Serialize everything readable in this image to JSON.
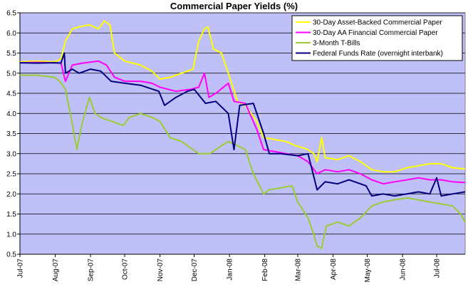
{
  "chart_data": {
    "type": "line",
    "title": "Commercial Paper Yields (%)",
    "xlabel": "",
    "ylabel": "",
    "ylim": [
      0.5,
      6.5
    ],
    "yticks": [
      0.5,
      1.0,
      1.5,
      2.0,
      2.5,
      3.0,
      3.5,
      4.0,
      4.5,
      5.0,
      5.5,
      6.0,
      6.5
    ],
    "xlim": [
      "2007-07-01",
      "2008-07-26"
    ],
    "xticks": [
      {
        "date": "2007-07-01",
        "label": "Jul-07"
      },
      {
        "date": "2007-08-01",
        "label": "Aug-07"
      },
      {
        "date": "2007-09-01",
        "label": "Sep-07"
      },
      {
        "date": "2007-10-01",
        "label": "Oct-07"
      },
      {
        "date": "2007-11-01",
        "label": "Nov-07"
      },
      {
        "date": "2007-12-01",
        "label": "Dec-07"
      },
      {
        "date": "2008-01-01",
        "label": "Jan-08"
      },
      {
        "date": "2008-02-01",
        "label": "Feb-08"
      },
      {
        "date": "2008-03-01",
        "label": "Mar-08"
      },
      {
        "date": "2008-04-01",
        "label": "Apr-08"
      },
      {
        "date": "2008-05-01",
        "label": "May-08"
      },
      {
        "date": "2008-06-01",
        "label": "Jun-08"
      },
      {
        "date": "2008-07-01",
        "label": "Jul-08"
      }
    ],
    "grid": true,
    "legend_position": "top-right",
    "plot_background": "#c0c0f8",
    "series": [
      {
        "name": "30-Day Asset-Backed Commercial Paper",
        "color": "#ffff00",
        "points": [
          [
            "2007-07-01",
            5.28
          ],
          [
            "2007-07-15",
            5.3
          ],
          [
            "2007-07-31",
            5.28
          ],
          [
            "2007-08-06",
            5.35
          ],
          [
            "2007-08-10",
            5.8
          ],
          [
            "2007-08-16",
            6.1
          ],
          [
            "2007-08-22",
            6.15
          ],
          [
            "2007-08-31",
            6.2
          ],
          [
            "2007-09-08",
            6.1
          ],
          [
            "2007-09-13",
            6.3
          ],
          [
            "2007-09-18",
            6.2
          ],
          [
            "2007-09-22",
            5.5
          ],
          [
            "2007-10-01",
            5.3
          ],
          [
            "2007-10-15",
            5.2
          ],
          [
            "2007-10-25",
            5.05
          ],
          [
            "2007-11-01",
            4.85
          ],
          [
            "2007-11-10",
            4.9
          ],
          [
            "2007-11-20",
            5.0
          ],
          [
            "2007-11-30",
            5.1
          ],
          [
            "2007-12-05",
            5.8
          ],
          [
            "2007-12-10",
            6.1
          ],
          [
            "2007-12-13",
            6.15
          ],
          [
            "2007-12-18",
            5.6
          ],
          [
            "2007-12-25",
            5.5
          ],
          [
            "2007-12-31",
            5.0
          ],
          [
            "2008-01-08",
            4.3
          ],
          [
            "2008-01-15",
            4.2
          ],
          [
            "2008-01-25",
            3.8
          ],
          [
            "2008-01-31",
            3.4
          ],
          [
            "2008-02-10",
            3.35
          ],
          [
            "2008-02-20",
            3.3
          ],
          [
            "2008-02-28",
            3.2
          ],
          [
            "2008-03-05",
            3.15
          ],
          [
            "2008-03-10",
            3.1
          ],
          [
            "2008-03-15",
            3.0
          ],
          [
            "2008-03-18",
            2.8
          ],
          [
            "2008-03-22",
            3.4
          ],
          [
            "2008-03-25",
            2.9
          ],
          [
            "2008-04-05",
            2.85
          ],
          [
            "2008-04-15",
            2.95
          ],
          [
            "2008-04-25",
            2.8
          ],
          [
            "2008-05-05",
            2.6
          ],
          [
            "2008-05-15",
            2.55
          ],
          [
            "2008-05-25",
            2.55
          ],
          [
            "2008-06-05",
            2.65
          ],
          [
            "2008-06-15",
            2.7
          ],
          [
            "2008-06-25",
            2.75
          ],
          [
            "2008-07-05",
            2.75
          ],
          [
            "2008-07-15",
            2.65
          ],
          [
            "2008-07-26",
            2.62
          ]
        ]
      },
      {
        "name": "30-Day AA Financial Commercial Paper",
        "color": "#ff00ff",
        "points": [
          [
            "2007-07-01",
            5.26
          ],
          [
            "2007-07-15",
            5.27
          ],
          [
            "2007-07-31",
            5.26
          ],
          [
            "2007-08-06",
            5.25
          ],
          [
            "2007-08-10",
            4.8
          ],
          [
            "2007-08-16",
            5.2
          ],
          [
            "2007-08-25",
            5.25
          ],
          [
            "2007-09-08",
            5.3
          ],
          [
            "2007-09-15",
            5.2
          ],
          [
            "2007-09-22",
            4.9
          ],
          [
            "2007-10-01",
            4.8
          ],
          [
            "2007-10-15",
            4.8
          ],
          [
            "2007-10-25",
            4.75
          ],
          [
            "2007-11-01",
            4.65
          ],
          [
            "2007-11-15",
            4.55
          ],
          [
            "2007-11-28",
            4.6
          ],
          [
            "2007-12-05",
            4.65
          ],
          [
            "2007-12-10",
            5.0
          ],
          [
            "2007-12-14",
            4.4
          ],
          [
            "2007-12-20",
            4.5
          ],
          [
            "2007-12-31",
            4.75
          ],
          [
            "2008-01-05",
            4.3
          ],
          [
            "2008-01-15",
            4.25
          ],
          [
            "2008-01-25",
            3.6
          ],
          [
            "2008-01-31",
            3.1
          ],
          [
            "2008-02-10",
            3.05
          ],
          [
            "2008-02-20",
            3.0
          ],
          [
            "2008-03-01",
            2.95
          ],
          [
            "2008-03-10",
            2.8
          ],
          [
            "2008-03-18",
            2.5
          ],
          [
            "2008-03-25",
            2.6
          ],
          [
            "2008-04-05",
            2.55
          ],
          [
            "2008-04-15",
            2.6
          ],
          [
            "2008-04-25",
            2.5
          ],
          [
            "2008-05-05",
            2.35
          ],
          [
            "2008-05-15",
            2.25
          ],
          [
            "2008-05-25",
            2.3
          ],
          [
            "2008-06-05",
            2.35
          ],
          [
            "2008-06-15",
            2.4
          ],
          [
            "2008-06-25",
            2.35
          ],
          [
            "2008-07-05",
            2.35
          ],
          [
            "2008-07-15",
            2.3
          ],
          [
            "2008-07-26",
            2.28
          ]
        ]
      },
      {
        "name": "3-Month T-Bills",
        "color": "#99cc33",
        "points": [
          [
            "2007-07-01",
            4.95
          ],
          [
            "2007-07-15",
            4.95
          ],
          [
            "2007-07-31",
            4.9
          ],
          [
            "2007-08-05",
            4.8
          ],
          [
            "2007-08-10",
            4.6
          ],
          [
            "2007-08-15",
            3.9
          ],
          [
            "2007-08-20",
            3.1
          ],
          [
            "2007-08-25",
            3.8
          ],
          [
            "2007-08-31",
            4.4
          ],
          [
            "2007-09-05",
            4.0
          ],
          [
            "2007-09-10",
            3.9
          ],
          [
            "2007-09-20",
            3.8
          ],
          [
            "2007-09-30",
            3.7
          ],
          [
            "2007-10-05",
            3.9
          ],
          [
            "2007-10-15",
            4.0
          ],
          [
            "2007-10-25",
            3.9
          ],
          [
            "2007-11-01",
            3.8
          ],
          [
            "2007-11-10",
            3.4
          ],
          [
            "2007-11-20",
            3.3
          ],
          [
            "2007-11-30",
            3.1
          ],
          [
            "2007-12-05",
            3.0
          ],
          [
            "2007-12-15",
            3.0
          ],
          [
            "2007-12-25",
            3.2
          ],
          [
            "2007-12-31",
            3.3
          ],
          [
            "2008-01-08",
            3.2
          ],
          [
            "2008-01-15",
            3.1
          ],
          [
            "2008-01-22",
            2.5
          ],
          [
            "2008-01-31",
            2.0
          ],
          [
            "2008-02-05",
            2.1
          ],
          [
            "2008-02-15",
            2.15
          ],
          [
            "2008-02-25",
            2.2
          ],
          [
            "2008-03-01",
            1.8
          ],
          [
            "2008-03-10",
            1.4
          ],
          [
            "2008-03-15",
            1.0
          ],
          [
            "2008-03-18",
            0.7
          ],
          [
            "2008-03-22",
            0.65
          ],
          [
            "2008-03-26",
            1.2
          ],
          [
            "2008-04-05",
            1.3
          ],
          [
            "2008-04-15",
            1.2
          ],
          [
            "2008-04-25",
            1.4
          ],
          [
            "2008-05-05",
            1.7
          ],
          [
            "2008-05-15",
            1.8
          ],
          [
            "2008-05-25",
            1.85
          ],
          [
            "2008-06-05",
            1.9
          ],
          [
            "2008-06-15",
            1.85
          ],
          [
            "2008-06-25",
            1.8
          ],
          [
            "2008-07-05",
            1.75
          ],
          [
            "2008-07-15",
            1.7
          ],
          [
            "2008-07-22",
            1.5
          ],
          [
            "2008-07-26",
            1.3
          ]
        ]
      },
      {
        "name": "Federal Funds Rate (overnight interbank)",
        "color": "#000080",
        "points": [
          [
            "2007-07-01",
            5.26
          ],
          [
            "2007-07-15",
            5.25
          ],
          [
            "2007-07-31",
            5.26
          ],
          [
            "2007-08-06",
            5.25
          ],
          [
            "2007-08-09",
            5.5
          ],
          [
            "2007-08-10",
            5.0
          ],
          [
            "2007-08-16",
            5.1
          ],
          [
            "2007-08-22",
            5.0
          ],
          [
            "2007-09-01",
            5.1
          ],
          [
            "2007-09-10",
            5.05
          ],
          [
            "2007-09-19",
            4.8
          ],
          [
            "2007-10-01",
            4.75
          ],
          [
            "2007-10-15",
            4.7
          ],
          [
            "2007-10-31",
            4.55
          ],
          [
            "2007-11-05",
            4.2
          ],
          [
            "2007-11-15",
            4.4
          ],
          [
            "2007-11-25",
            4.55
          ],
          [
            "2007-12-01",
            4.6
          ],
          [
            "2007-12-11",
            4.25
          ],
          [
            "2007-12-20",
            4.3
          ],
          [
            "2007-12-31",
            4.0
          ],
          [
            "2008-01-05",
            3.1
          ],
          [
            "2008-01-10",
            4.2
          ],
          [
            "2008-01-22",
            4.25
          ],
          [
            "2008-01-31",
            3.5
          ],
          [
            "2008-02-05",
            3.0
          ],
          [
            "2008-02-15",
            3.0
          ],
          [
            "2008-03-01",
            2.95
          ],
          [
            "2008-03-10",
            3.0
          ],
          [
            "2008-03-18",
            2.1
          ],
          [
            "2008-03-25",
            2.3
          ],
          [
            "2008-04-05",
            2.25
          ],
          [
            "2008-04-15",
            2.35
          ],
          [
            "2008-04-30",
            2.2
          ],
          [
            "2008-05-05",
            1.95
          ],
          [
            "2008-05-15",
            2.0
          ],
          [
            "2008-05-25",
            1.95
          ],
          [
            "2008-06-05",
            2.0
          ],
          [
            "2008-06-15",
            2.05
          ],
          [
            "2008-06-25",
            2.0
          ],
          [
            "2008-07-01",
            2.4
          ],
          [
            "2008-07-05",
            1.95
          ],
          [
            "2008-07-15",
            2.0
          ],
          [
            "2008-07-26",
            2.05
          ]
        ]
      }
    ]
  }
}
